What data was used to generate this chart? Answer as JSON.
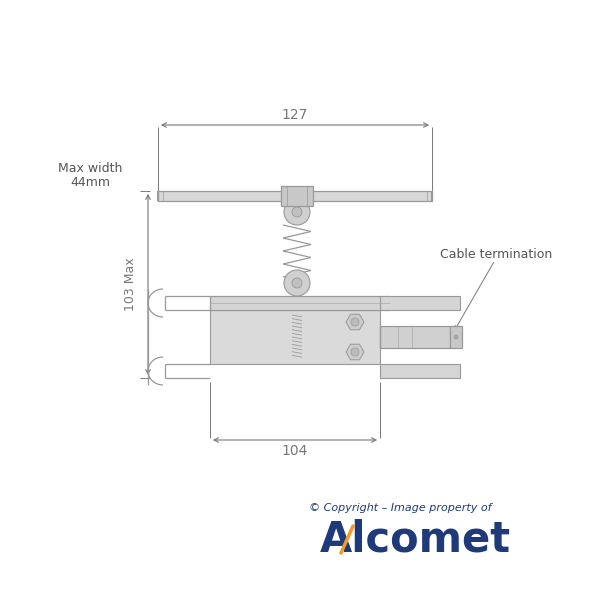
{
  "bg_color": "#ffffff",
  "line_color": "#999999",
  "dim_color": "#777777",
  "text_color": "#555555",
  "alcomet_blue": "#1e3a7a",
  "alcomet_orange": "#f59a23",
  "dim_127": "127",
  "dim_104": "104",
  "dim_103": "103 Max",
  "dim_maxw_1": "Max width",
  "dim_maxw_2": "44mm",
  "dim_cable": "Cable termination",
  "copyright_text": "© Copyright – Image property of",
  "alcomet_text": "Alcomet"
}
